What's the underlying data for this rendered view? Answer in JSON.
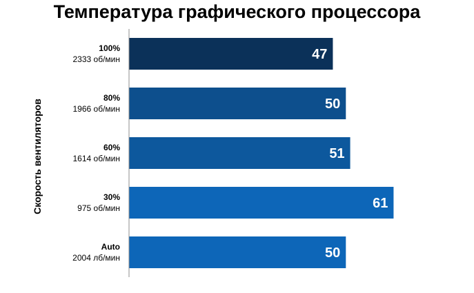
{
  "chart_data": {
    "type": "bar",
    "orientation": "horizontal",
    "title": "Температура графического процессора",
    "ylabel": "Скорость вентиляторов",
    "xlabel": "",
    "categories": [
      {
        "label": "100%",
        "sublabel": "2333 об/мин"
      },
      {
        "label": "80%",
        "sublabel": "1966 об/мин"
      },
      {
        "label": "60%",
        "sublabel": "1614 об/мин"
      },
      {
        "label": "30%",
        "sublabel": "975 об/мин"
      },
      {
        "label": "Auto",
        "sublabel": "2004 лб/мин"
      }
    ],
    "values": [
      47,
      50,
      51,
      61,
      50
    ],
    "xlim": [
      0,
      70
    ],
    "grid": false,
    "data_labels": true,
    "bar_colors": [
      "#0b3159",
      "#0d4f8d",
      "#0d589d",
      "#0d66b8",
      "#0d66b8"
    ],
    "label_color": "#ffffff"
  }
}
